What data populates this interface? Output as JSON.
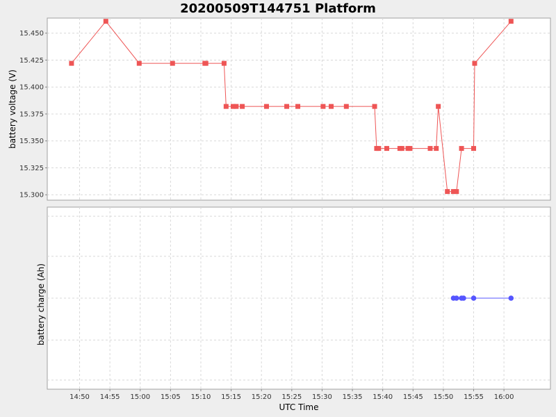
{
  "chart_data": {
    "title": "20200509T144751 Platform",
    "xlabel": "UTC Time",
    "x_ticks": [
      "14:50",
      "14:55",
      "15:00",
      "15:05",
      "15:10",
      "15:15",
      "15:20",
      "15:25",
      "15:30",
      "15:35",
      "15:40",
      "15:45",
      "15:50",
      "15:55",
      "16:00"
    ],
    "x_range": [
      "14:44:40",
      "16:07:40"
    ],
    "grid": true,
    "panels": [
      {
        "type": "line",
        "ylabel": "battery voltage (V)",
        "ylim": [
          15.295,
          15.464
        ],
        "y_ticks": [
          15.3,
          15.325,
          15.35,
          15.375,
          15.4,
          15.425,
          15.45
        ],
        "series": [
          {
            "color": "#ee5555",
            "marker": "square",
            "x": [
              "14:48:40",
              "14:54:20",
              "14:59:50",
              "15:05:20",
              "15:10:40",
              "15:10:50",
              "15:13:50",
              "15:14:10",
              "15:15:20",
              "15:15:50",
              "15:16:50",
              "15:20:50",
              "15:24:10",
              "15:26:00",
              "15:30:10",
              "15:31:30",
              "15:34:00",
              "15:38:40",
              "15:39:00",
              "15:39:20",
              "15:40:40",
              "15:42:50",
              "15:43:10",
              "15:44:10",
              "15:44:30",
              "15:47:50",
              "15:48:50",
              "15:49:10",
              "15:50:40",
              "15:51:40",
              "15:52:10",
              "15:53:00",
              "15:55:00",
              "15:55:10",
              "16:01:10"
            ],
            "y": [
              15.422,
              15.461,
              15.422,
              15.422,
              15.422,
              15.422,
              15.422,
              15.382,
              15.382,
              15.382,
              15.382,
              15.382,
              15.382,
              15.382,
              15.382,
              15.382,
              15.382,
              15.382,
              15.343,
              15.343,
              15.343,
              15.343,
              15.343,
              15.343,
              15.343,
              15.343,
              15.343,
              15.382,
              15.303,
              15.303,
              15.303,
              15.343,
              15.343,
              15.422,
              15.461
            ]
          }
        ]
      },
      {
        "type": "line",
        "ylabel": "battery charge (Ah)",
        "series": [
          {
            "color": "#5555ff",
            "marker": "circle",
            "x": [
              "15:51:40",
              "15:52:10",
              "15:53:00",
              "15:53:20",
              "15:55:00",
              "16:01:10"
            ],
            "y": [
              1,
              1,
              1,
              1,
              1,
              1
            ]
          }
        ]
      }
    ]
  }
}
